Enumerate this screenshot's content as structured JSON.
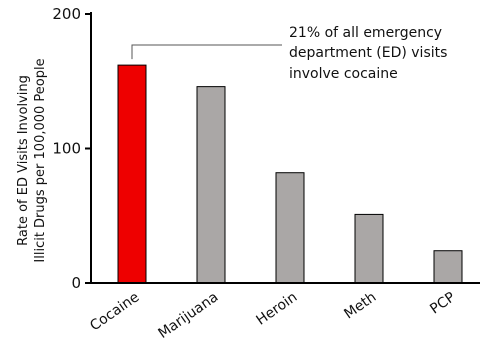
{
  "chart_data": {
    "type": "bar",
    "categories": [
      "Cocaine",
      "Marijuana",
      "Heroin",
      "Meth",
      "PCP"
    ],
    "values": [
      162,
      146,
      82,
      51,
      24
    ],
    "ylim": [
      0,
      200
    ],
    "yticks": [
      "0",
      "100",
      "200"
    ],
    "ylabel_lines": [
      "Rate of ED Visits Involving",
      "Illicit Drugs per 100,000 People"
    ],
    "xlabel": "",
    "title": "",
    "grid": false,
    "bar_colors": [
      "#ee0000",
      "#aaa7a6",
      "#aaa7a6",
      "#aaa7a6",
      "#aaa7a6"
    ],
    "annotation": {
      "lines": [
        "21% of all emergency",
        "department (ED) visits",
        "involve cocaine"
      ],
      "target_category": "Cocaine"
    }
  }
}
